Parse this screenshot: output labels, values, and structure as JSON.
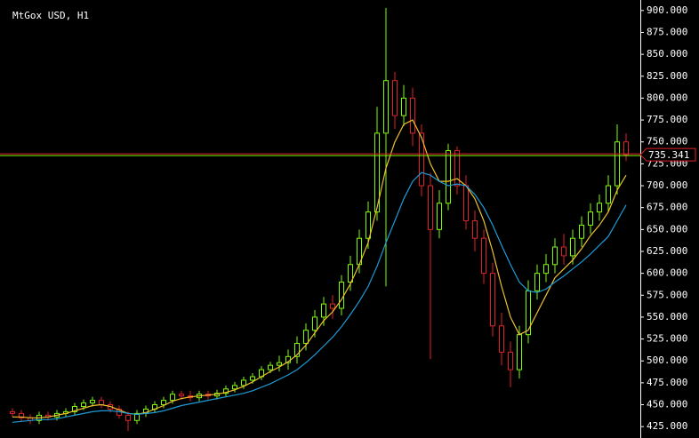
{
  "chart_data": {
    "type": "candlestick",
    "title": "MtGox USD, H1",
    "open": [
      442,
      440,
      435,
      432,
      438,
      436,
      440,
      442,
      448,
      452,
      455,
      450,
      445,
      438,
      432,
      440,
      445,
      450,
      455,
      462,
      460,
      458,
      462,
      460,
      463,
      468,
      472,
      478,
      482,
      490,
      495,
      498,
      505,
      520,
      535,
      550,
      565,
      560,
      590,
      610,
      640,
      670,
      760,
      820,
      780,
      800,
      760,
      700,
      650,
      680,
      740,
      700,
      660,
      640,
      600,
      540,
      510,
      490,
      530,
      580,
      600,
      610,
      630,
      620,
      640,
      655,
      670,
      680,
      700,
      750
    ],
    "high": [
      446,
      444,
      439,
      442,
      442,
      444,
      446,
      452,
      456,
      459,
      459,
      454,
      449,
      442,
      444,
      449,
      454,
      459,
      466,
      466,
      466,
      466,
      466,
      467,
      472,
      476,
      482,
      486,
      494,
      499,
      506,
      513,
      528,
      543,
      558,
      573,
      575,
      598,
      620,
      650,
      682,
      790,
      903,
      830,
      815,
      812,
      770,
      715,
      695,
      748,
      745,
      712,
      672,
      650,
      612,
      555,
      522,
      540,
      592,
      610,
      622,
      640,
      645,
      650,
      665,
      680,
      690,
      712,
      770,
      760
    ],
    "low": [
      436,
      431,
      428,
      428,
      432,
      432,
      436,
      438,
      444,
      448,
      446,
      441,
      434,
      420,
      428,
      436,
      441,
      446,
      451,
      456,
      454,
      454,
      456,
      456,
      459,
      464,
      468,
      474,
      478,
      486,
      488,
      490,
      497,
      512,
      527,
      540,
      548,
      552,
      580,
      600,
      628,
      660,
      585,
      765,
      768,
      745,
      688,
      502,
      640,
      672,
      690,
      650,
      625,
      588,
      528,
      495,
      470,
      480,
      520,
      570,
      590,
      600,
      610,
      610,
      630,
      645,
      660,
      670,
      690,
      728
    ],
    "close": [
      440,
      435,
      432,
      438,
      436,
      440,
      442,
      448,
      452,
      455,
      450,
      445,
      438,
      432,
      440,
      445,
      450,
      455,
      462,
      460,
      458,
      462,
      460,
      463,
      468,
      472,
      478,
      482,
      490,
      495,
      498,
      505,
      520,
      535,
      550,
      565,
      560,
      590,
      610,
      640,
      670,
      760,
      820,
      780,
      800,
      760,
      700,
      650,
      680,
      740,
      700,
      660,
      640,
      600,
      540,
      510,
      490,
      530,
      580,
      600,
      610,
      630,
      620,
      640,
      655,
      670,
      680,
      700,
      750,
      735.341
    ],
    "up_color": "#7cfc00",
    "down_color": "#e0202a",
    "series": [
      {
        "color": "#f0c030",
        "values": [
          436,
          436,
          435,
          435,
          436,
          438,
          440,
          443,
          446,
          449,
          450,
          448,
          444,
          440,
          439,
          441,
          445,
          449,
          454,
          457,
          459,
          460,
          461,
          462,
          464,
          467,
          471,
          476,
          482,
          488,
          493,
          499,
          507,
          518,
          532,
          546,
          556,
          570,
          588,
          610,
          635,
          675,
          720,
          750,
          770,
          775,
          755,
          725,
          705,
          705,
          708,
          700,
          685,
          660,
          625,
          585,
          550,
          530,
          535,
          555,
          575,
          595,
          605,
          615,
          628,
          643,
          655,
          670,
          695,
          712
        ]
      },
      {
        "color": "#1e9bd7",
        "values": [
          430,
          431,
          432,
          433,
          433,
          434,
          436,
          438,
          440,
          442,
          443,
          443,
          442,
          440,
          439,
          440,
          441,
          443,
          446,
          449,
          451,
          453,
          455,
          457,
          459,
          461,
          463,
          466,
          470,
          474,
          479,
          484,
          490,
          498,
          507,
          517,
          527,
          539,
          553,
          568,
          585,
          608,
          635,
          660,
          685,
          705,
          715,
          712,
          705,
          700,
          702,
          700,
          690,
          675,
          655,
          632,
          610,
          590,
          580,
          578,
          582,
          590,
          597,
          605,
          613,
          622,
          632,
          642,
          660,
          678
        ]
      }
    ],
    "last_price": 735.341,
    "ylim": [
      412,
      912
    ],
    "yticks": [
      {
        "value": 425,
        "label": "425.000"
      },
      {
        "value": 450,
        "label": "450.000"
      },
      {
        "value": 475,
        "label": "475.000"
      },
      {
        "value": 500,
        "label": "500.000"
      },
      {
        "value": 525,
        "label": "525.000"
      },
      {
        "value": 550,
        "label": "550.000"
      },
      {
        "value": 575,
        "label": "575.000"
      },
      {
        "value": 600,
        "label": "600.000"
      },
      {
        "value": 625,
        "label": "625.000"
      },
      {
        "value": 650,
        "label": "650.000"
      },
      {
        "value": 675,
        "label": "675.000"
      },
      {
        "value": 700,
        "label": "700.000"
      },
      {
        "value": 725,
        "label": "725.000"
      },
      {
        "value": 750,
        "label": "750.000"
      },
      {
        "value": 775,
        "label": "775.000"
      },
      {
        "value": 800,
        "label": "800.000"
      },
      {
        "value": 825,
        "label": "825.000"
      },
      {
        "value": 850,
        "label": "850.000"
      },
      {
        "value": 875,
        "label": "875.000"
      },
      {
        "value": 900,
        "label": "900.000"
      }
    ]
  }
}
